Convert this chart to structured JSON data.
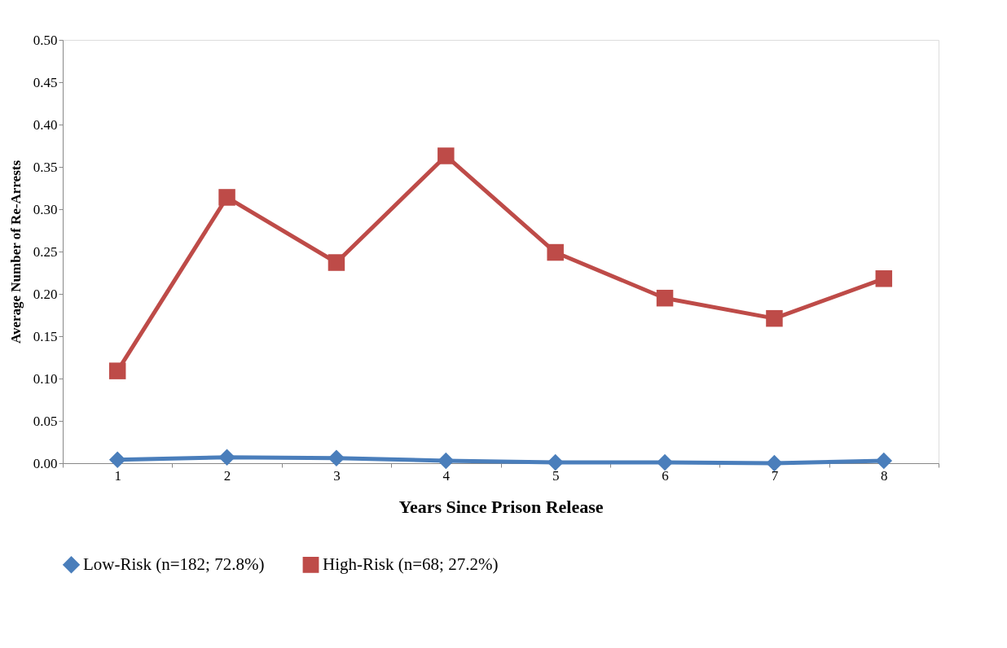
{
  "chart_data": {
    "type": "line",
    "xlabel": "Years Since Prison Release",
    "ylabel": "Average Number of Re-Arrests",
    "categories": [
      "1",
      "2",
      "3",
      "4",
      "5",
      "6",
      "7",
      "8"
    ],
    "series": [
      {
        "name": "Low-Risk (n=182; 72.8%)",
        "color": "#4a7ebb",
        "marker": "diamond",
        "values": [
          0.004,
          0.007,
          0.006,
          0.003,
          0.001,
          0.001,
          0.0,
          0.003
        ]
      },
      {
        "name": "High-Risk (n=68; 27.2%)",
        "color": "#be4b48",
        "marker": "square",
        "values": [
          0.109,
          0.314,
          0.237,
          0.363,
          0.249,
          0.195,
          0.171,
          0.218
        ]
      }
    ],
    "ylim": [
      0,
      0.5
    ],
    "yticks": [
      {
        "value": 0,
        "label": "0.00"
      },
      0.05,
      {
        "value": 0.1,
        "label": "0.10"
      },
      0.15,
      {
        "value": 0.2,
        "label": "0.20"
      },
      0.25,
      {
        "value": 0.3,
        "label": "0.30"
      },
      0.35,
      {
        "value": 0.4,
        "label": "0.40"
      },
      0.45,
      {
        "value": 0.5,
        "label": "0.50"
      }
    ],
    "grid": false,
    "legend": "bottom",
    "line_style": "solid"
  }
}
